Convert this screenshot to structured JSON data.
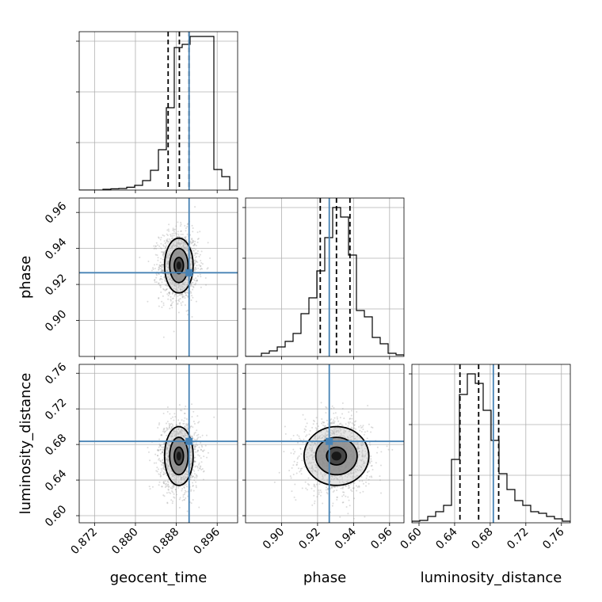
{
  "chart_data": {
    "type": "corner",
    "grid": true,
    "truth_color": "#4682b4",
    "line_color": "#000000",
    "parameters": [
      {
        "name": "geocent_time",
        "label": "geocent_time",
        "range": [
          0.869,
          0.9
        ],
        "ticks": [
          0.872,
          0.88,
          0.888,
          0.896
        ],
        "tick_labels": [
          "0.872",
          "0.880",
          "0.888",
          "0.896"
        ],
        "truth": 0.8905,
        "quantiles": [
          0.8864,
          0.8886,
          0.8905
        ],
        "hist_values": [
          0,
          0,
          0,
          0.005,
          0.008,
          0.01,
          0.018,
          0.03,
          0.06,
          0.125,
          0.255,
          0.52,
          0.9,
          0.92,
          0.97,
          0.97,
          0.97,
          0.13,
          0.085,
          0
        ]
      },
      {
        "name": "phase",
        "label": "phase",
        "range": [
          0.88,
          0.968
        ],
        "ticks": [
          0.9,
          0.92,
          0.94,
          0.96
        ],
        "tick_labels": [
          "0.90",
          "0.92",
          "0.94",
          "0.96"
        ],
        "truth": 0.9265,
        "quantiles": [
          0.9215,
          0.9305,
          0.938
        ],
        "hist_values": [
          0,
          0,
          0.02,
          0.035,
          0.06,
          0.095,
          0.145,
          0.27,
          0.37,
          0.54,
          0.75,
          0.94,
          0.88,
          0.64,
          0.29,
          0.25,
          0.12,
          0.08,
          0.02,
          0.01
        ]
      },
      {
        "name": "luminosity_distance",
        "label": "luminosity_distance",
        "range": [
          0.592,
          0.77
        ],
        "ticks": [
          0.6,
          0.64,
          0.68,
          0.72,
          0.76
        ],
        "tick_labels": [
          "0.60",
          "0.64",
          "0.68",
          "0.72",
          "0.76"
        ],
        "truth": 0.6835,
        "quantiles": [
          0.646,
          0.667,
          0.6895
        ],
        "hist_values": [
          0.01,
          0.015,
          0.04,
          0.07,
          0.11,
          0.4,
          0.81,
          0.94,
          0.88,
          0.71,
          0.52,
          0.31,
          0.21,
          0.14,
          0.11,
          0.07,
          0.06,
          0.04,
          0.025,
          0.01
        ]
      }
    ],
    "pairs": [
      {
        "x": "geocent_time",
        "y": "phase",
        "center": [
          0.8885,
          0.9305
        ],
        "sigma": [
          0.0019,
          0.0095
        ],
        "contour_levels": [
          {
            "hx": 0.0009,
            "hy": 0.0045
          },
          {
            "hx": 0.0018,
            "hy": 0.0095
          },
          {
            "hx": 0.0028,
            "hy": 0.0152
          }
        ]
      },
      {
        "x": "geocent_time",
        "y": "luminosity_distance",
        "center": [
          0.8885,
          0.667
        ],
        "sigma": [
          0.0019,
          0.02
        ],
        "contour_levels": [
          {
            "hx": 0.0009,
            "hy": 0.01
          },
          {
            "hx": 0.0018,
            "hy": 0.021
          },
          {
            "hx": 0.0028,
            "hy": 0.033
          }
        ]
      },
      {
        "x": "phase",
        "y": "luminosity_distance",
        "center": [
          0.9305,
          0.667
        ],
        "sigma": [
          0.0095,
          0.02
        ],
        "contour_levels": [
          {
            "hx": 0.0055,
            "hy": 0.01
          },
          {
            "hx": 0.0115,
            "hy": 0.021
          },
          {
            "hx": 0.018,
            "hy": 0.033
          }
        ]
      }
    ]
  }
}
